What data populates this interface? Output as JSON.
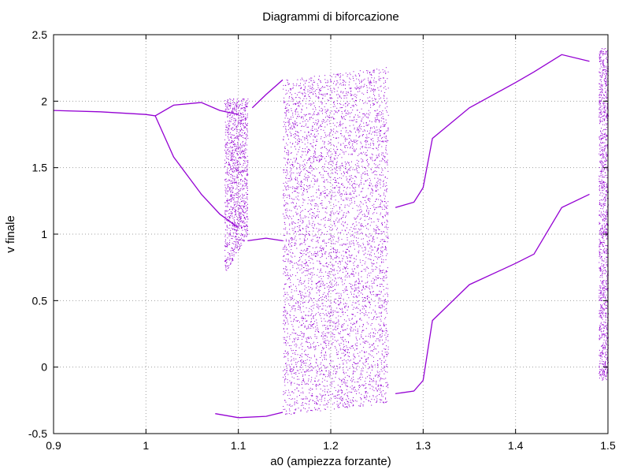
{
  "chart_data": {
    "type": "scatter",
    "title": "Diagrammi di biforcazione",
    "xlabel": "a0 (ampiezza forzante)",
    "ylabel": "v finale",
    "xlim": [
      0.9,
      1.5
    ],
    "ylim": [
      -0.5,
      2.5
    ],
    "x_ticks": [
      0.9,
      1.0,
      1.1,
      1.2,
      1.3,
      1.4,
      1.5
    ],
    "x_tick_labels": [
      "0.9",
      "1",
      "1.1",
      "1.2",
      "1.3",
      "1.4",
      "1.5"
    ],
    "y_ticks": [
      -0.5,
      0,
      0.5,
      1,
      1.5,
      2,
      2.5
    ],
    "y_tick_labels": [
      "-0.5",
      "0",
      "0.5",
      "1",
      "1.5",
      "2",
      "2.5"
    ],
    "grid": true,
    "legend": "none",
    "point_color": "#9400d3",
    "series": [
      {
        "kind": "branch",
        "x": [
          0.9,
          0.95,
          1.0,
          1.01,
          1.03,
          1.06,
          1.08,
          1.1
        ],
        "y": [
          1.93,
          1.92,
          1.9,
          1.89,
          1.97,
          1.99,
          1.93,
          1.9
        ]
      },
      {
        "kind": "branch",
        "x": [
          1.01,
          1.03,
          1.06,
          1.08,
          1.1
        ],
        "y": [
          1.89,
          1.58,
          1.3,
          1.15,
          1.05
        ]
      },
      {
        "kind": "branch",
        "x": [
          1.11,
          1.13,
          1.148
        ],
        "y": [
          0.95,
          0.97,
          0.95
        ]
      },
      {
        "kind": "branch",
        "x": [
          1.075,
          1.1,
          1.13,
          1.148
        ],
        "y": [
          -0.35,
          -0.38,
          -0.37,
          -0.34
        ]
      },
      {
        "kind": "branch",
        "x": [
          1.115,
          1.13,
          1.148
        ],
        "y": [
          1.95,
          2.05,
          2.16
        ]
      },
      {
        "kind": "branch",
        "x": [
          1.27,
          1.29,
          1.3,
          1.31,
          1.35,
          1.4,
          1.42,
          1.45,
          1.48
        ],
        "y": [
          1.2,
          1.24,
          1.35,
          1.72,
          1.95,
          2.14,
          2.22,
          2.35,
          2.3
        ]
      },
      {
        "kind": "branch",
        "x": [
          1.27,
          1.29,
          1.3,
          1.31,
          1.35,
          1.4,
          1.42,
          1.45,
          1.48
        ],
        "y": [
          -0.2,
          -0.18,
          -0.1,
          0.35,
          0.62,
          0.78,
          0.85,
          1.2,
          1.3
        ]
      },
      {
        "kind": "chaotic-band",
        "x_range": [
          1.148,
          1.262
        ],
        "y_top": [
          2.16,
          2.26
        ],
        "y_bottom": [
          -0.36,
          -0.27
        ],
        "density": "high"
      },
      {
        "kind": "chaotic-band",
        "x_range": [
          1.085,
          1.11
        ],
        "y_top": [
          2.02,
          2.03
        ],
        "y_bottom": [
          0.7,
          1.0
        ],
        "density": "medium"
      },
      {
        "kind": "chaotic-band",
        "x_range": [
          1.49,
          1.5
        ],
        "y_top": [
          2.4,
          2.4
        ],
        "y_bottom": [
          -0.1,
          -0.1
        ],
        "density": "medium"
      }
    ]
  }
}
